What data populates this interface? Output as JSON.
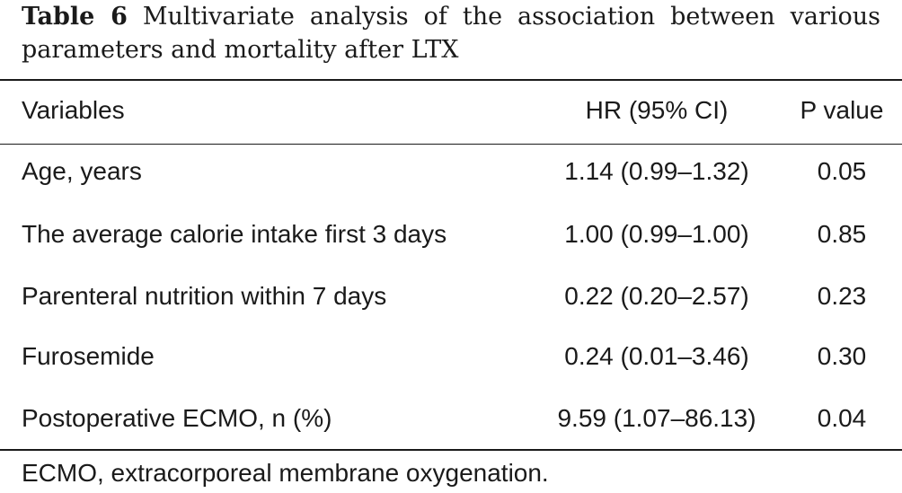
{
  "caption": {
    "label": "Table 6",
    "text": "Multivariate analysis of the association between various parameters and mortality after LTX"
  },
  "table": {
    "headers": [
      "Variables",
      "HR (95% CI)",
      "P value"
    ],
    "rows": [
      {
        "variable": "Age, years",
        "hr": "1.14 (0.99–1.32)",
        "p": "0.05"
      },
      {
        "variable": "The average calorie intake first 3 days",
        "hr": "1.00 (0.99–1.00)",
        "p": "0.85"
      },
      {
        "variable": "Parenteral nutrition within 7 days",
        "hr": "0.22 (0.20–2.57)",
        "p": "0.23"
      },
      {
        "variable": "Furosemide",
        "hr": "0.24 (0.01–3.46)",
        "p": "0.30"
      },
      {
        "variable": "Postoperative ECMO, n (%)",
        "hr": "9.59 (1.07–86.13)",
        "p": "0.04"
      }
    ]
  },
  "footnote": "ECMO, extracorporeal membrane oxygenation."
}
